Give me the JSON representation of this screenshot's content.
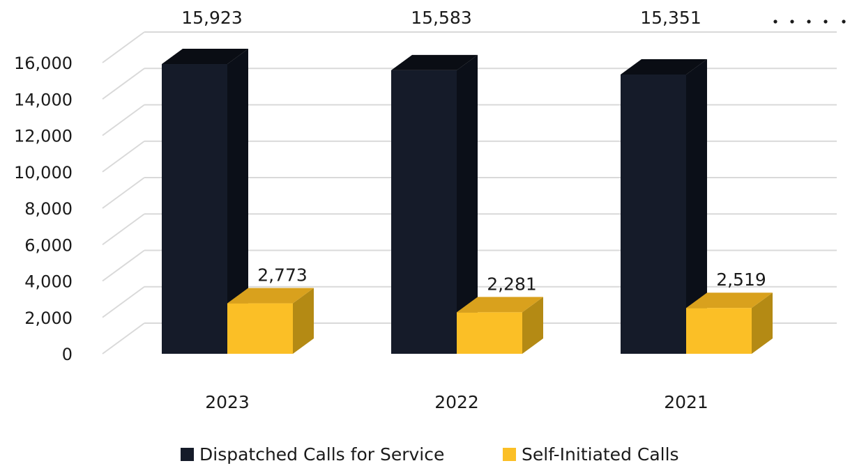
{
  "chart_data": {
    "type": "bar",
    "categories": [
      "2023",
      "2022",
      "2021"
    ],
    "series": [
      {
        "name": "Dispatched Calls for Service",
        "values": [
          15923,
          15583,
          15351
        ],
        "labels": [
          "15,923",
          "15,583",
          "15,351"
        ]
      },
      {
        "name": "Self-Initiated Calls",
        "values": [
          2773,
          2281,
          2519
        ],
        "labels": [
          "2,773",
          "2,281",
          "2,519"
        ]
      }
    ],
    "ylim": [
      0,
      16000
    ],
    "yticks": [
      "0",
      "2,000",
      "4,000",
      "6,000",
      "8,000",
      "10,000",
      "12,000",
      "14,000",
      "16,000"
    ],
    "grid": true,
    "legend_position": "bottom",
    "style": "3d-column",
    "colors": {
      "dispatched_front": "#151b29",
      "dispatched_side": "#0b0f18",
      "dispatched_top": "#0a0d14",
      "self_front": "#fbbf26",
      "self_side": "#b48a14",
      "self_top": "#d9a11d",
      "grid": "#d9d9d9"
    }
  }
}
